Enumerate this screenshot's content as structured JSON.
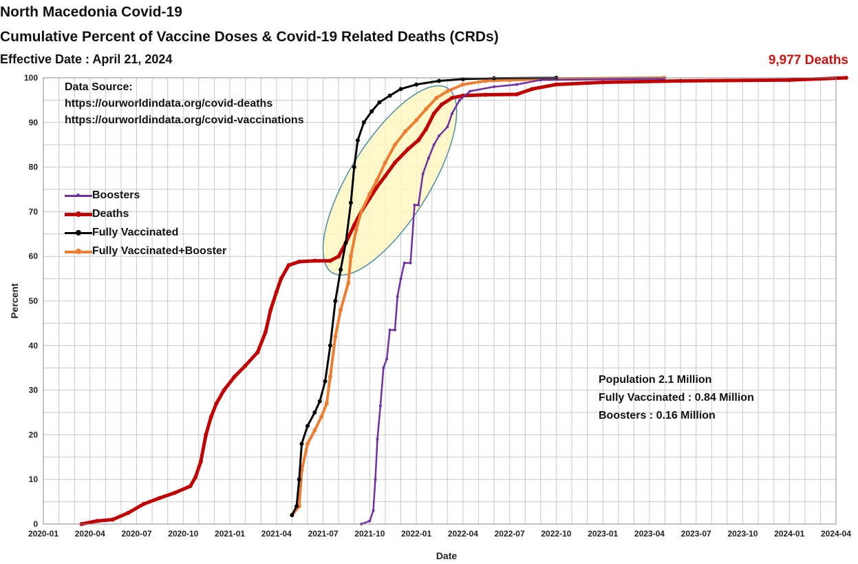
{
  "header": {
    "title": "North Macedonia Covid-19",
    "subtitle": "Cumulative Percent of Vaccine Doses & Covid-19 Related Deaths (CRDs)",
    "effective_date": "Effective Date : April 21, 2024",
    "deaths_total": "9,977 Deaths"
  },
  "data_source": {
    "heading": "Data Source:",
    "url1": "https://ourworldindata.org/covid-deaths",
    "url2": "https://ourworldindata.org/covid-vaccinations"
  },
  "population_box": {
    "line1": "Population  2.1 Million",
    "line2": "Fully Vaccinated : 0.84 Million",
    "line3": "Boosters : 0.16 Million"
  },
  "chart_data": {
    "type": "line",
    "xlabel": "Date",
    "ylabel": "Percent",
    "ylim": [
      0,
      100
    ],
    "xlim": [
      "2020-01",
      "2024-04"
    ],
    "grid": true,
    "legend_position": "left",
    "x_tick_labels": [
      "2020-01",
      "2020-04",
      "2020-07",
      "2020-10",
      "2021-01",
      "2021-04",
      "2021-07",
      "2021-10",
      "2022-01",
      "2022-04",
      "2022-07",
      "2022-10",
      "2023-01",
      "2023-04",
      "2023-07",
      "2023-10",
      "2024-01",
      "2024-04"
    ],
    "y_tick_labels": [
      "0",
      "10",
      "20",
      "30",
      "40",
      "50",
      "60",
      "70",
      "80",
      "90",
      "100"
    ],
    "series": [
      {
        "name": "Boosters",
        "color": "#7030a0",
        "points": [
          [
            "2021-09-15",
            0
          ],
          [
            "2021-10-01",
            0.7
          ],
          [
            "2021-10-08",
            3
          ],
          [
            "2021-10-12",
            10
          ],
          [
            "2021-10-16",
            19
          ],
          [
            "2021-10-22",
            26.5
          ],
          [
            "2021-10-28",
            35
          ],
          [
            "2021-11-04",
            37
          ],
          [
            "2021-11-10",
            43.5
          ],
          [
            "2021-11-20",
            43.5
          ],
          [
            "2021-11-25",
            51
          ],
          [
            "2021-12-01",
            55
          ],
          [
            "2021-12-08",
            58.5
          ],
          [
            "2021-12-20",
            58.5
          ],
          [
            "2021-12-28",
            71.5
          ],
          [
            "2022-01-05",
            71.5
          ],
          [
            "2022-01-14",
            78.5
          ],
          [
            "2022-01-25",
            82
          ],
          [
            "2022-02-05",
            85
          ],
          [
            "2022-02-15",
            87
          ],
          [
            "2022-03-01",
            89
          ],
          [
            "2022-03-10",
            92
          ],
          [
            "2022-03-25",
            95
          ],
          [
            "2022-04-15",
            97
          ],
          [
            "2022-06-01",
            98
          ],
          [
            "2022-07-15",
            98.5
          ],
          [
            "2022-09-01",
            99.5
          ],
          [
            "2023-04-30",
            99.8
          ]
        ]
      },
      {
        "name": "Deaths",
        "color": "#c00000",
        "points": [
          [
            "2020-03-15",
            0
          ],
          [
            "2020-04-15",
            0.7
          ],
          [
            "2020-05-15",
            1
          ],
          [
            "2020-06-15",
            2.5
          ],
          [
            "2020-07-15",
            4.5
          ],
          [
            "2020-08-15",
            5.8
          ],
          [
            "2020-09-15",
            7
          ],
          [
            "2020-10-15",
            8.5
          ],
          [
            "2020-10-25",
            10.5
          ],
          [
            "2020-11-05",
            14
          ],
          [
            "2020-11-15",
            20
          ],
          [
            "2020-11-25",
            24
          ],
          [
            "2020-12-05",
            27
          ],
          [
            "2020-12-20",
            30
          ],
          [
            "2021-01-10",
            33
          ],
          [
            "2021-02-01",
            35.5
          ],
          [
            "2021-02-25",
            38.5
          ],
          [
            "2021-03-10",
            43
          ],
          [
            "2021-03-20",
            48
          ],
          [
            "2021-04-01",
            52
          ],
          [
            "2021-04-10",
            55
          ],
          [
            "2021-04-25",
            58
          ],
          [
            "2021-05-15",
            58.8
          ],
          [
            "2021-06-15",
            59
          ],
          [
            "2021-07-15",
            59
          ],
          [
            "2021-08-01",
            60
          ],
          [
            "2021-08-15",
            63
          ],
          [
            "2021-09-01",
            67
          ],
          [
            "2021-09-15",
            70
          ],
          [
            "2021-10-01",
            73
          ],
          [
            "2021-10-15",
            75.5
          ],
          [
            "2021-11-01",
            78
          ],
          [
            "2021-11-20",
            81
          ],
          [
            "2021-12-15",
            84
          ],
          [
            "2022-01-05",
            86
          ],
          [
            "2022-01-20",
            88.5
          ],
          [
            "2022-02-05",
            92
          ],
          [
            "2022-02-20",
            94
          ],
          [
            "2022-03-10",
            95.5
          ],
          [
            "2022-04-01",
            96
          ],
          [
            "2022-05-15",
            96.2
          ],
          [
            "2022-07-15",
            96.3
          ],
          [
            "2022-08-15",
            97.5
          ],
          [
            "2022-10-01",
            98.5
          ],
          [
            "2023-01-01",
            99
          ],
          [
            "2023-06-01",
            99.3
          ],
          [
            "2024-01-01",
            99.5
          ],
          [
            "2024-04-21",
            100
          ]
        ]
      },
      {
        "name": "Fully Vaccinated",
        "color": "#000000",
        "points": [
          [
            "2021-05-01",
            2
          ],
          [
            "2021-05-10",
            4
          ],
          [
            "2021-05-15",
            10
          ],
          [
            "2021-05-20",
            18
          ],
          [
            "2021-06-01",
            22
          ],
          [
            "2021-06-15",
            25
          ],
          [
            "2021-06-25",
            27.5
          ],
          [
            "2021-07-05",
            32
          ],
          [
            "2021-07-15",
            40
          ],
          [
            "2021-07-25",
            50
          ],
          [
            "2021-08-05",
            57
          ],
          [
            "2021-08-15",
            63
          ],
          [
            "2021-08-25",
            72
          ],
          [
            "2021-09-01",
            80
          ],
          [
            "2021-09-08",
            86
          ],
          [
            "2021-09-20",
            90
          ],
          [
            "2021-10-05",
            92.5
          ],
          [
            "2021-10-20",
            94.5
          ],
          [
            "2021-11-10",
            96
          ],
          [
            "2021-12-01",
            97.5
          ],
          [
            "2022-01-01",
            98.5
          ],
          [
            "2022-02-15",
            99.3
          ],
          [
            "2022-04-01",
            99.7
          ],
          [
            "2022-06-01",
            99.9
          ],
          [
            "2022-10-01",
            100
          ]
        ]
      },
      {
        "name": "Fully Vaccinated+Booster",
        "color": "#ed7d31",
        "points": [
          [
            "2021-05-01",
            2
          ],
          [
            "2021-05-15",
            4
          ],
          [
            "2021-05-20",
            12
          ],
          [
            "2021-06-01",
            18
          ],
          [
            "2021-06-15",
            21
          ],
          [
            "2021-06-28",
            24
          ],
          [
            "2021-07-08",
            27
          ],
          [
            "2021-07-15",
            33
          ],
          [
            "2021-07-25",
            42
          ],
          [
            "2021-08-05",
            48
          ],
          [
            "2021-08-20",
            54
          ],
          [
            "2021-08-25",
            60
          ],
          [
            "2021-09-05",
            66
          ],
          [
            "2021-09-15",
            70
          ],
          [
            "2021-10-01",
            74
          ],
          [
            "2021-10-15",
            77
          ],
          [
            "2021-11-01",
            81
          ],
          [
            "2021-11-20",
            85
          ],
          [
            "2021-12-10",
            88
          ],
          [
            "2022-01-01",
            90.5
          ],
          [
            "2022-01-20",
            93
          ],
          [
            "2022-02-10",
            95.5
          ],
          [
            "2022-03-01",
            97
          ],
          [
            "2022-04-01",
            98.5
          ],
          [
            "2022-05-15",
            99.3
          ],
          [
            "2022-07-01",
            99.5
          ],
          [
            "2022-10-01",
            99.8
          ],
          [
            "2023-04-30",
            100
          ]
        ]
      }
    ],
    "annotation": "ellipse highlighting the Jul 2021 – Apr 2022 vaccination surge"
  }
}
